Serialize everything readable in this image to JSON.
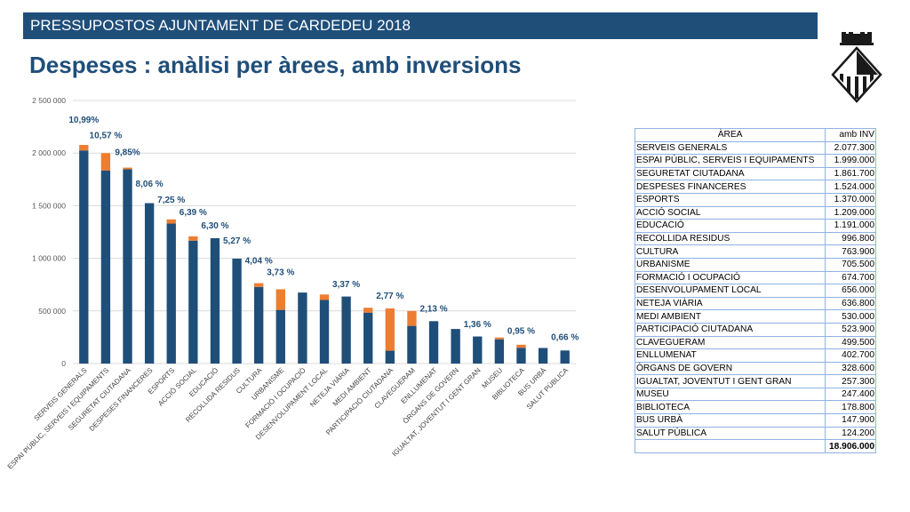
{
  "header": {
    "banner": "PRESSUPOSTOS AJUNTAMENT DE CARDEDEU 2018",
    "title": "Despeses : anàlisi per àrees, amb inversions"
  },
  "colors": {
    "base": "#1f4e79",
    "investment": "#ed7d31",
    "label": "#1f4e79",
    "grid": "#d9d9d9"
  },
  "chart_data": {
    "type": "bar",
    "stacked": true,
    "ylim": [
      0,
      2500000
    ],
    "yticks": [
      0,
      500000,
      1000000,
      1500000,
      2000000,
      2500000
    ],
    "ytick_labels": [
      "0",
      "500 000",
      "1 000 000",
      "1 500 000",
      "2 000 000",
      "2 500 000"
    ],
    "grid": true,
    "categories": [
      "SERVEIS GENERALS",
      "ESPAI PÚBLIC, SERVEIS I EQUIPAMENTS",
      "SEGURETAT CIUTADANA",
      "DESPESES FINANCERES",
      "ESPORTS",
      "ACCIÓ SOCIAL",
      "EDUCACIÓ",
      "RECOLLIDA RESIDUS",
      "CULTURA",
      "URBANISME",
      "FORMACIÓ I OCUPACIÓ",
      "DESENVOLUPAMENT LOCAL",
      "NETEJA VIÀRIA",
      "MEDI AMBIENT",
      "PARTICIPACIÓ CIUTADANA",
      "CLAVEGUERAM",
      "ENLLUMENAT",
      "ÒRGANS DE GOVERN",
      "IGUALTAT, JOVENTUT I GENT GRAN",
      "MUSEU",
      "BIBLIOTECA",
      "BUS URBÀ",
      "SALUT PÚBLICA"
    ],
    "series": [
      {
        "values": [
          2025000,
          1835000,
          1846000,
          1524000,
          1330000,
          1168000,
          1191000,
          996800,
          728000,
          510000,
          674700,
          604000,
          636800,
          484000,
          122000,
          358000,
          402700,
          328600,
          257300,
          230000,
          150000,
          147900,
          124200
        ]
      },
      {
        "values": [
          52300,
          164000,
          15700,
          0,
          40000,
          41000,
          0,
          0,
          35900,
          195500,
          0,
          52000,
          0,
          46000,
          401900,
          141500,
          0,
          0,
          0,
          17400,
          28800,
          0,
          0
        ]
      }
    ],
    "annotations": [
      {
        "index": 0,
        "text": "10,99%",
        "y": 2290000
      },
      {
        "index": 1,
        "text": "10,57 %",
        "y": 2140000
      },
      {
        "index": 2,
        "text": "9,85%",
        "y": 1980000
      },
      {
        "index": 3,
        "text": "8,06 %",
        "y": 1680000
      },
      {
        "index": 4,
        "text": "7,25 %",
        "y": 1530000
      },
      {
        "index": 5,
        "text": "6,39 %",
        "y": 1410000
      },
      {
        "index": 6,
        "text": "6,30 %",
        "y": 1285000
      },
      {
        "index": 7,
        "text": "5,27 %",
        "y": 1140000
      },
      {
        "index": 8,
        "text": "4,04 %",
        "y": 950000
      },
      {
        "index": 9,
        "text": "3,73 %",
        "y": 840000
      },
      {
        "index": 12,
        "text": "3,37 %",
        "y": 725000
      },
      {
        "index": 14,
        "text": "2,77 %",
        "y": 615000
      },
      {
        "index": 16,
        "text": "2,13 %",
        "y": 495000
      },
      {
        "index": 18,
        "text": "1,36 %",
        "y": 345000
      },
      {
        "index": 20,
        "text": "0,95 %",
        "y": 285000
      },
      {
        "index": 22,
        "text": "0,66 %",
        "y": 225000
      }
    ]
  },
  "table": {
    "headers": [
      "ÀREA",
      "amb INV"
    ],
    "rows": [
      [
        "SERVEIS GENERALS",
        "2.077.300"
      ],
      [
        "ESPAI PÚBLIC, SERVEIS I EQUIPAMENTS",
        "1.999.000"
      ],
      [
        "SEGURETAT CIUTADANA",
        "1.861.700"
      ],
      [
        "DESPESES FINANCERES",
        "1.524.000"
      ],
      [
        "ESPORTS",
        "1.370.000"
      ],
      [
        "ACCIÓ SOCIAL",
        "1.209.000"
      ],
      [
        "EDUCACIÓ",
        "1.191.000"
      ],
      [
        "RECOLLIDA RESIDUS",
        "996.800"
      ],
      [
        "CULTURA",
        "763.900"
      ],
      [
        "URBANISME",
        "705.500"
      ],
      [
        "FORMACIÓ I OCUPACIÓ",
        "674.700"
      ],
      [
        "DESENVOLUPAMENT LOCAL",
        "656.000"
      ],
      [
        "NETEJA VIÀRIA",
        "636.800"
      ],
      [
        "MEDI AMBIENT",
        "530.000"
      ],
      [
        "PARTICIPACIÓ CIUTADANA",
        "523.900"
      ],
      [
        "CLAVEGUERAM",
        "499.500"
      ],
      [
        "ENLLUMENAT",
        "402.700"
      ],
      [
        "ÒRGANS DE GOVERN",
        "328.600"
      ],
      [
        "IGUALTAT, JOVENTUT I GENT GRAN",
        "257.300"
      ],
      [
        "MUSEU",
        "247.400"
      ],
      [
        "BIBLIOTECA",
        "178.800"
      ],
      [
        "BUS URBÀ",
        "147.900"
      ],
      [
        "SALUT PÚBLICA",
        "124.200"
      ]
    ],
    "total": [
      "",
      "18.906.000"
    ]
  }
}
